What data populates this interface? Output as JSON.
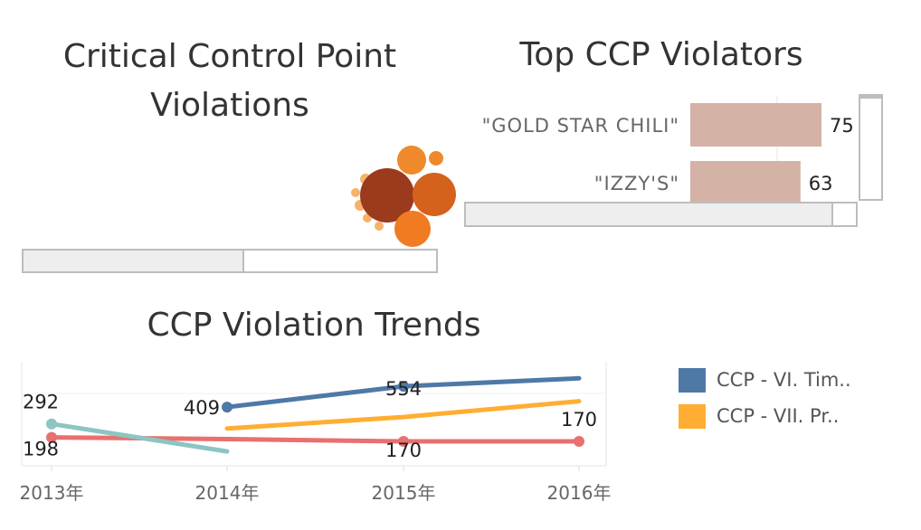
{
  "colors": {
    "series1": "#4e79a7",
    "series2": "#f28e2b",
    "series3": "#e15759",
    "series4": "#76b7b2",
    "bar": "#d4b2a5",
    "bubble_dark": "#9c3a1e",
    "bubble_mid": "#d4621c",
    "bubble_orange": "#f0892b",
    "bubble_light": "#f6b26b"
  },
  "ccp_violations": {
    "title": "Critical Control Point Violations"
  },
  "top_violators": {
    "title": "Top CCP Violators"
  },
  "trends": {
    "title": "CCP Violation Trends"
  },
  "chart_data": [
    {
      "type": "bubble",
      "title": "Critical Control Point Violations"
    },
    {
      "type": "bar",
      "title": "Top CCP Violators",
      "categories": [
        "\"GOLD STAR CHILI\"",
        "\"IZZY'S\""
      ],
      "values": [
        75,
        63
      ]
    },
    {
      "type": "line",
      "title": "CCP Violation Trends",
      "x": [
        "2013年",
        "2014年",
        "2015年",
        "2016年"
      ],
      "series": [
        {
          "name": "CCP - VI. Tim..",
          "color": "#4e79a7",
          "values": [
            null,
            409,
            554,
            610
          ],
          "labels": [
            null,
            "409",
            "554",
            null
          ]
        },
        {
          "name": "CCP - VII. Pr..",
          "color": "#ffae33",
          "values": [
            null,
            260,
            340,
            450
          ],
          "labels": [
            null,
            null,
            null,
            null
          ]
        },
        {
          "name": "",
          "color": "#e8706f",
          "values": [
            198,
            186,
            170,
            170
          ],
          "labels": [
            "198",
            null,
            "170",
            "170"
          ]
        },
        {
          "name": "",
          "color": "#8cc5c2",
          "values": [
            292,
            100,
            null,
            null
          ],
          "labels": [
            "292",
            null,
            null,
            null
          ]
        }
      ],
      "ylim": [
        0,
        700
      ]
    }
  ],
  "legend": [
    {
      "label": "CCP - VI. Tim..",
      "color": "#4e79a7"
    },
    {
      "label": "CCP - VII. Pr..",
      "color": "#ffae33"
    }
  ]
}
